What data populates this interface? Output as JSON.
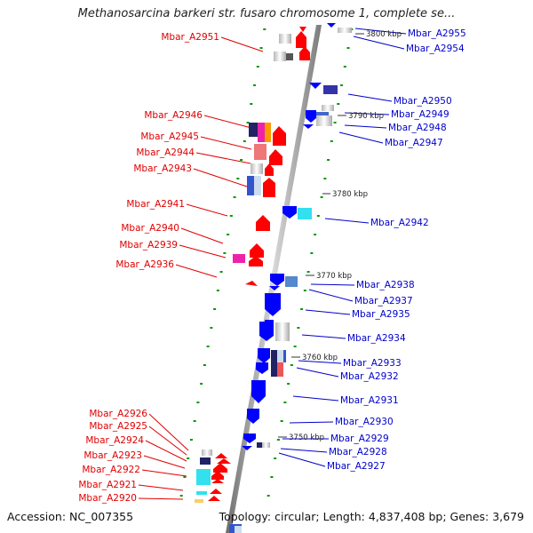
{
  "title": "Methanosarcina barkeri str. fusaro chromosome 1, complete se...",
  "footer": {
    "accession": "Accession: NC_007355",
    "topology": "Topology: circular; Length: 4,837,408 bp; Genes: 3,679"
  },
  "ticks": [
    "3800 kbp",
    "3790 kbp",
    "3780 kbp",
    "3770 kbp",
    "3760 kbp",
    "3750 kbp"
  ],
  "left_genes": [
    "Mbar_A2951",
    "Mbar_A2946",
    "Mbar_A2945",
    "Mbar_A2944",
    "Mbar_A2943",
    "Mbar_A2941",
    "Mbar_A2940",
    "Mbar_A2939",
    "Mbar_A2936",
    "Mbar_A2926",
    "Mbar_A2925",
    "Mbar_A2924",
    "Mbar_A2923",
    "Mbar_A2922",
    "Mbar_A2921",
    "Mbar_A2920"
  ],
  "right_genes": [
    "Mbar_A2955",
    "Mbar_A2954",
    "Mbar_A2950",
    "Mbar_A2949",
    "Mbar_A2948",
    "Mbar_A2947",
    "Mbar_A2942",
    "Mbar_A2938",
    "Mbar_A2937",
    "Mbar_A2935",
    "Mbar_A2934",
    "Mbar_A2933",
    "Mbar_A2932",
    "Mbar_A2931",
    "Mbar_A2930",
    "Mbar_A2929",
    "Mbar_A2928",
    "Mbar_A2927"
  ],
  "colors": {
    "forward": "#ff0000",
    "reverse": "#0000ff",
    "left_label": "#e00000",
    "right_label": "#0000cc",
    "backbone": "#a0a0a0",
    "dots": "#009900"
  }
}
